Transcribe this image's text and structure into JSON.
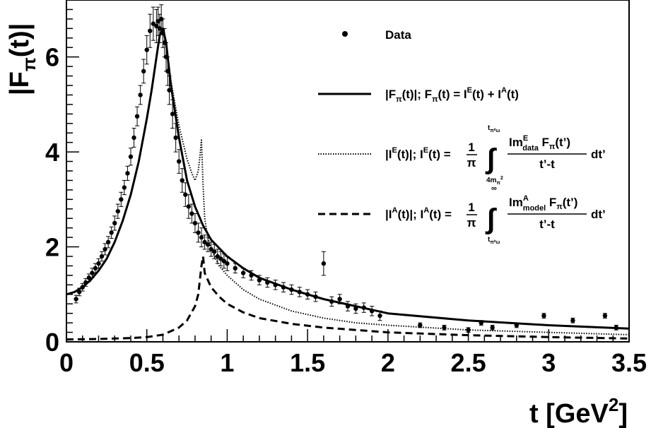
{
  "chart_data": {
    "type": "line",
    "title": "",
    "xlabel": "t [GeV",
    "xlabel_sup": "2",
    "xlabel_close": "]",
    "ylabel_main": "|F",
    "ylabel_sub": "π",
    "ylabel_tail": "(t)|",
    "xlim": [
      0,
      3.5
    ],
    "ylim": [
      0,
      7.2
    ],
    "x_ticks": [
      "0",
      "0.5",
      "1",
      "1.5",
      "2",
      "2.5",
      "3",
      "3.5"
    ],
    "y_ticks": [
      "0",
      "2",
      "4",
      "6"
    ],
    "grid": false,
    "legend_position": "top-right",
    "legend": {
      "data": "Data",
      "total": {
        "a": "|F",
        "a_sub": "π",
        "b": "(t)|; F",
        "b_sub": "π",
        "c": "(t) = I",
        "c_sup": "E",
        "d": "(t) + I",
        "d_sup": "A",
        "e": "(t)"
      },
      "ie": {
        "a": "|I",
        "a_sup": "E",
        "b": "(t)|; I",
        "b_sup": "E",
        "c": "(t) =",
        "frac_num": "1",
        "frac_den": "π",
        "upper": "t",
        "upper_sub": "π⁰ω",
        "lower": "4m",
        "lower_sub": "π",
        "lower_sup": "2",
        "num": "Im",
        "num_sup": "E",
        "num_sub": "data",
        "num_tail": " F",
        "num_tail_sub": "π",
        "num_end": "(t’)",
        "den": "t’-t",
        "dt": "dt’"
      },
      "ia": {
        "a": "|I",
        "a_sup": "A",
        "b": "(t)|; I",
        "b_sup": "A",
        "c": "(t) =",
        "frac_num": "1",
        "frac_den": "π",
        "upper": "∞",
        "lower": "t",
        "lower_sub": "π⁰ω",
        "num": "Im",
        "num_sup": "A",
        "num_sub": "model",
        "num_tail": " F",
        "num_tail_sub": "π",
        "num_end": "(t’)",
        "den": "t’-t",
        "dt": "dt’"
      }
    },
    "series": [
      {
        "name": "Data",
        "style": "points",
        "x": [
          0.06,
          0.08,
          0.1,
          0.12,
          0.14,
          0.16,
          0.18,
          0.2,
          0.22,
          0.24,
          0.26,
          0.28,
          0.3,
          0.32,
          0.34,
          0.36,
          0.38,
          0.4,
          0.42,
          0.44,
          0.46,
          0.48,
          0.5,
          0.52,
          0.54,
          0.56,
          0.57,
          0.58,
          0.59,
          0.6,
          0.61,
          0.62,
          0.63,
          0.64,
          0.66,
          0.68,
          0.7,
          0.72,
          0.74,
          0.76,
          0.78,
          0.8,
          0.82,
          0.84,
          0.86,
          0.88,
          0.9,
          0.92,
          0.94,
          0.96,
          0.98,
          1.0,
          1.05,
          1.1,
          1.15,
          1.2,
          1.25,
          1.3,
          1.35,
          1.4,
          1.45,
          1.5,
          1.55,
          1.6,
          1.65,
          1.7,
          1.75,
          1.8,
          1.85,
          1.9,
          1.95,
          2.2,
          2.35,
          2.5,
          2.58,
          2.65,
          2.8,
          2.97,
          3.15,
          3.35,
          3.42
        ],
        "y": [
          0.9,
          1.05,
          1.15,
          1.25,
          1.35,
          1.45,
          1.55,
          1.65,
          1.8,
          1.95,
          2.1,
          2.3,
          2.5,
          2.75,
          3.0,
          3.25,
          3.55,
          3.9,
          4.3,
          4.75,
          5.2,
          5.7,
          6.15,
          6.55,
          6.7,
          6.65,
          6.75,
          6.6,
          6.8,
          6.5,
          6.3,
          6.0,
          5.7,
          5.3,
          4.8,
          4.3,
          3.8,
          3.4,
          3.1,
          2.85,
          2.7,
          2.5,
          2.3,
          2.2,
          2.1,
          2.05,
          1.95,
          1.9,
          1.8,
          1.75,
          1.7,
          1.65,
          1.55,
          1.45,
          1.4,
          1.3,
          1.25,
          1.2,
          1.15,
          1.1,
          1.05,
          1.0,
          0.95,
          1.65,
          0.85,
          0.9,
          0.75,
          0.7,
          0.72,
          0.65,
          0.55,
          0.35,
          0.3,
          0.25,
          0.4,
          0.3,
          0.35,
          0.55,
          0.45,
          0.55,
          0.3
        ],
        "err": [
          0.08,
          0.08,
          0.08,
          0.08,
          0.08,
          0.1,
          0.1,
          0.1,
          0.1,
          0.12,
          0.12,
          0.12,
          0.15,
          0.15,
          0.15,
          0.15,
          0.15,
          0.18,
          0.2,
          0.2,
          0.2,
          0.25,
          0.3,
          0.35,
          0.35,
          0.35,
          0.3,
          0.3,
          0.3,
          0.3,
          0.3,
          0.3,
          0.3,
          0.3,
          0.3,
          0.3,
          0.25,
          0.25,
          0.25,
          0.25,
          0.2,
          0.2,
          0.2,
          0.2,
          0.15,
          0.15,
          0.15,
          0.15,
          0.15,
          0.15,
          0.15,
          0.15,
          0.1,
          0.1,
          0.1,
          0.1,
          0.1,
          0.1,
          0.1,
          0.1,
          0.1,
          0.1,
          0.1,
          0.25,
          0.1,
          0.1,
          0.1,
          0.1,
          0.1,
          0.1,
          0.1,
          0.05,
          0.05,
          0.05,
          0.05,
          0.05,
          0.05,
          0.05,
          0.05,
          0.05,
          0.05
        ]
      },
      {
        "name": "total",
        "style": "solid",
        "x": [
          0,
          0.05,
          0.1,
          0.15,
          0.2,
          0.25,
          0.3,
          0.35,
          0.4,
          0.45,
          0.5,
          0.53,
          0.56,
          0.58,
          0.6,
          0.62,
          0.65,
          0.7,
          0.75,
          0.8,
          0.85,
          0.9,
          1.0,
          1.1,
          1.2,
          1.4,
          1.6,
          1.8,
          2.0,
          2.5,
          3.0,
          3.5
        ],
        "y": [
          1.0,
          1.05,
          1.15,
          1.3,
          1.5,
          1.75,
          2.1,
          2.55,
          3.1,
          3.8,
          4.7,
          5.3,
          6.0,
          6.45,
          6.6,
          6.3,
          5.4,
          4.3,
          3.4,
          2.85,
          2.45,
          2.15,
          1.8,
          1.55,
          1.35,
          1.1,
          0.9,
          0.75,
          0.6,
          0.45,
          0.35,
          0.28
        ]
      },
      {
        "name": "ie",
        "style": "dotted",
        "x": [
          0,
          0.05,
          0.1,
          0.15,
          0.2,
          0.25,
          0.3,
          0.35,
          0.4,
          0.45,
          0.5,
          0.53,
          0.56,
          0.58,
          0.6,
          0.62,
          0.65,
          0.7,
          0.75,
          0.78,
          0.8,
          0.82,
          0.83,
          0.84,
          0.85,
          0.86,
          0.88,
          0.9,
          0.95,
          1.0,
          1.1,
          1.2,
          1.4,
          1.6,
          1.8,
          2.0,
          2.5,
          3.0,
          3.5
        ],
        "y": [
          1.0,
          1.05,
          1.15,
          1.3,
          1.5,
          1.75,
          2.1,
          2.55,
          3.1,
          3.8,
          4.7,
          5.3,
          6.0,
          6.45,
          6.6,
          6.3,
          5.5,
          4.55,
          3.85,
          3.55,
          3.4,
          3.6,
          3.9,
          4.25,
          3.3,
          2.6,
          2.2,
          1.95,
          1.6,
          1.4,
          1.1,
          0.9,
          0.65,
          0.5,
          0.4,
          0.35,
          0.25,
          0.2,
          0.15
        ]
      },
      {
        "name": "ia",
        "style": "dashed",
        "x": [
          0,
          0.2,
          0.4,
          0.5,
          0.6,
          0.7,
          0.75,
          0.8,
          0.82,
          0.84,
          0.85,
          0.86,
          0.88,
          0.9,
          0.95,
          1.0,
          1.1,
          1.2,
          1.4,
          1.6,
          1.8,
          2.0,
          2.5,
          3.0,
          3.5
        ],
        "y": [
          0.05,
          0.06,
          0.08,
          0.1,
          0.15,
          0.3,
          0.45,
          0.75,
          1.0,
          1.6,
          1.8,
          1.45,
          1.3,
          1.15,
          0.95,
          0.8,
          0.62,
          0.5,
          0.38,
          0.3,
          0.25,
          0.2,
          0.14,
          0.1,
          0.07
        ]
      }
    ]
  }
}
